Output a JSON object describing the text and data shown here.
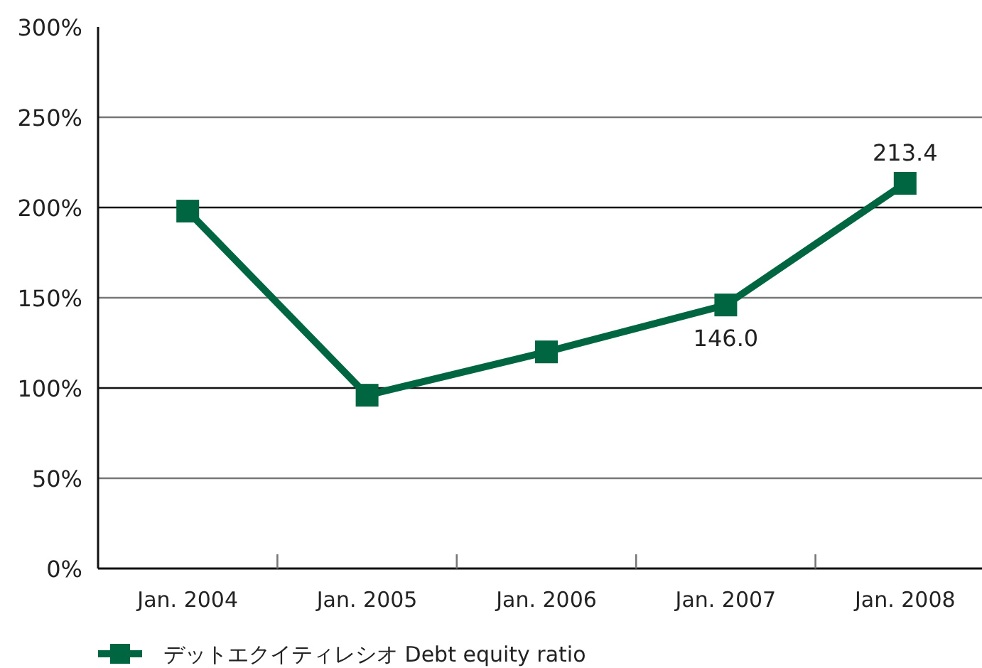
{
  "chart_data": {
    "type": "line",
    "categories": [
      "Jan. 2004",
      "Jan. 2005",
      "Jan. 2006",
      "Jan. 2007",
      "Jan. 2008"
    ],
    "series": [
      {
        "name": "デットエクイティレシオ Debt equity ratio",
        "color": "#006641",
        "values": [
          198,
          96,
          120,
          146.0,
          213.4
        ],
        "value_labels": [
          null,
          null,
          null,
          "146.0",
          "213.4"
        ]
      }
    ],
    "ylim": [
      0,
      300
    ],
    "yticks": [
      {
        "value": 0,
        "label": "0%"
      },
      {
        "value": 50,
        "label": "50%"
      },
      {
        "value": 100,
        "label": "100%"
      },
      {
        "value": 150,
        "label": "150%"
      },
      {
        "value": 200,
        "label": "200%"
      },
      {
        "value": 250,
        "label": "250%"
      },
      {
        "value": 300,
        "label": "300%"
      }
    ],
    "grid": "y",
    "legend": "bottom left",
    "marker": "square",
    "line_style": "solid"
  }
}
